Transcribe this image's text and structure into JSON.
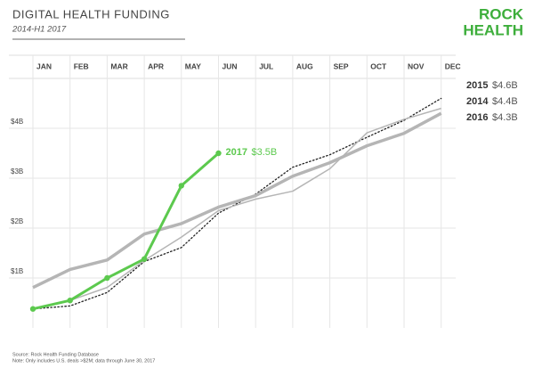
{
  "chart_data": {
    "type": "line",
    "title": "DIGITAL HEALTH FUNDING",
    "subtitle": "2014-H1 2017",
    "logo": [
      "ROCK",
      "HEALTH"
    ],
    "source": "Source: Rock Health Funding Database",
    "note": "Note: Only includes U.S. deals >$2M; data through June 30, 2017",
    "categories": [
      "JAN",
      "FEB",
      "MAR",
      "APR",
      "MAY",
      "JUN",
      "JUL",
      "AUG",
      "SEP",
      "OCT",
      "NOV",
      "DEC"
    ],
    "ylim": [
      0,
      5
    ],
    "yticks": [
      {
        "value": 1,
        "label": "$1B"
      },
      {
        "value": 2,
        "label": "$2B"
      },
      {
        "value": 3,
        "label": "$3B"
      },
      {
        "value": 4,
        "label": "$4B"
      }
    ],
    "grid": true,
    "series": [
      {
        "name": "2015",
        "color": "#222222",
        "line_width": 1.5,
        "line_style": "dotted",
        "values": [
          0.38,
          0.44,
          0.71,
          1.33,
          1.61,
          2.3,
          2.68,
          3.22,
          3.47,
          3.82,
          4.16,
          4.6
        ],
        "value_labels": [
          null,
          null,
          null,
          null,
          null,
          null,
          null,
          null,
          null,
          null,
          null,
          "$4.6B"
        ]
      },
      {
        "name": "2014",
        "color": "#b5b5b5",
        "line_width": 1.5,
        "line_style": "solid",
        "values": [
          0.38,
          0.55,
          0.81,
          1.35,
          1.82,
          2.35,
          2.58,
          2.74,
          3.19,
          3.91,
          4.18,
          4.4
        ],
        "value_labels": [
          null,
          null,
          null,
          null,
          null,
          null,
          null,
          null,
          null,
          null,
          null,
          "$4.4B"
        ]
      },
      {
        "name": "2016",
        "color": "#b5b5b5",
        "line_width": 3.5,
        "line_style": "solid",
        "values": [
          0.81,
          1.17,
          1.36,
          1.88,
          2.09,
          2.42,
          2.65,
          3.04,
          3.31,
          3.65,
          3.9,
          4.3
        ],
        "value_labels": [
          null,
          null,
          null,
          null,
          null,
          null,
          null,
          null,
          null,
          null,
          null,
          "$4.3B"
        ]
      },
      {
        "name": "2017",
        "color": "#5cc94e",
        "line_width": 3,
        "line_style": "solid",
        "markers": true,
        "values": [
          0.38,
          0.55,
          1.0,
          1.38,
          2.85,
          3.5,
          null,
          null,
          null,
          null,
          null,
          null
        ],
        "value_labels": [
          null,
          null,
          null,
          null,
          null,
          "$3.5B",
          null,
          null,
          null,
          null,
          null,
          null
        ]
      }
    ]
  }
}
